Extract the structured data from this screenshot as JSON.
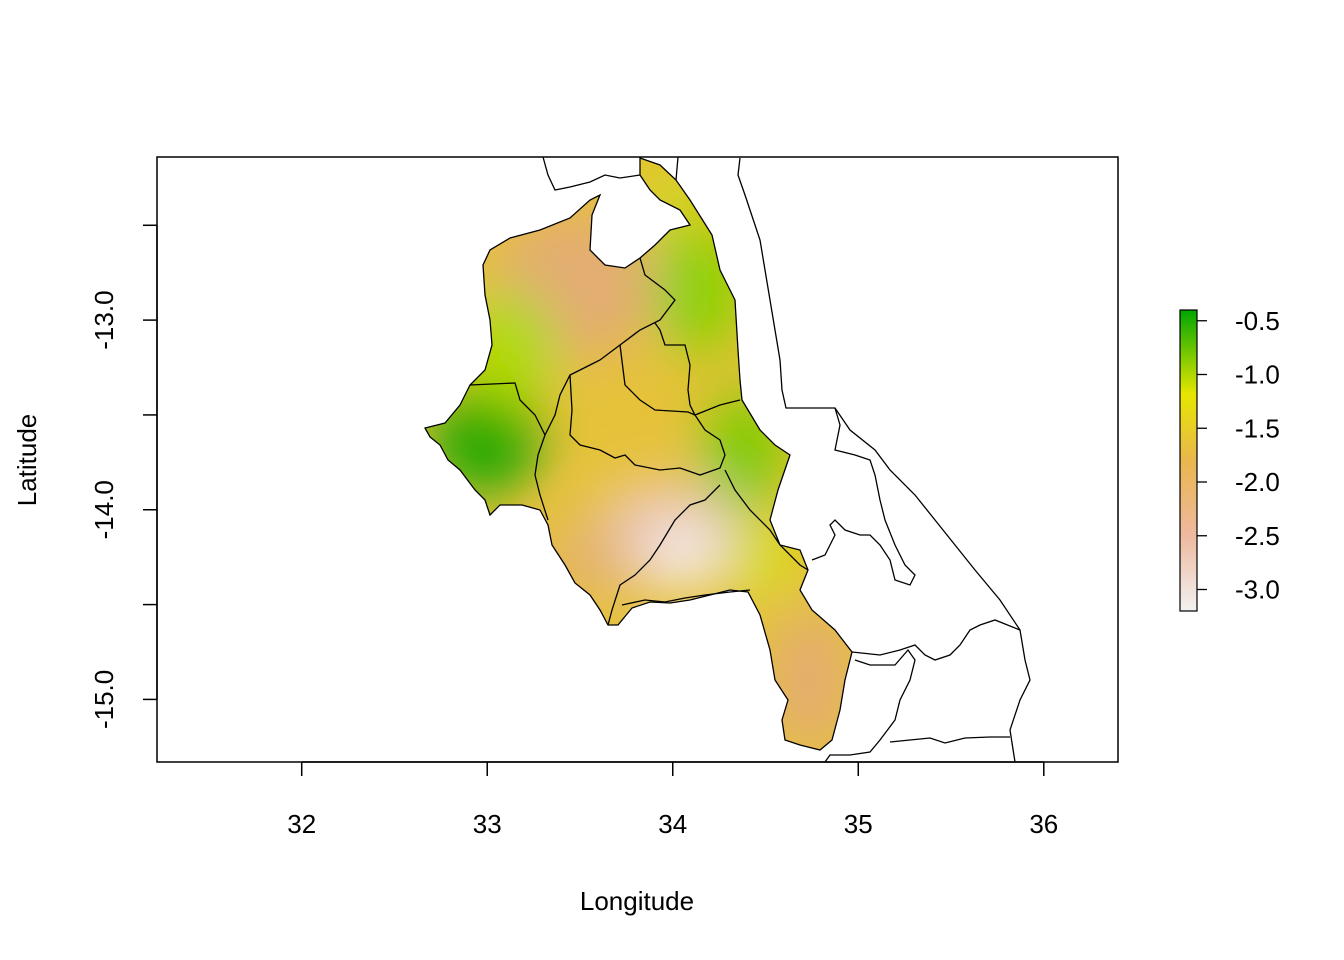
{
  "plot": {
    "xlabel": "Longitude",
    "ylabel": "Latitude",
    "xlim": [
      31.22,
      36.4
    ],
    "ylim": [
      -15.33,
      -12.14
    ],
    "x_ticks": [
      32,
      33,
      34,
      35,
      36
    ],
    "x_tick_labels": [
      "32",
      "33",
      "34",
      "35",
      "36"
    ],
    "y_ticks": [
      -12.5,
      -13.0,
      -13.5,
      -14.0,
      -14.5,
      -15.0
    ],
    "y_tick_labels": [
      "",
      "-13.0",
      "",
      "-14.0",
      "",
      "-15.0"
    ]
  },
  "legend": {
    "values": [
      -0.5,
      -1.0,
      -1.5,
      -2.0,
      -2.5,
      -3.0
    ],
    "labels": [
      "-0.5",
      "-1.0",
      "-1.5",
      "-2.0",
      "-2.5",
      "-3.0"
    ],
    "range": [
      -3.2,
      -0.4
    ],
    "colors": [
      "#00A600",
      "#E6E600",
      "#EAB64E",
      "#EEB99F",
      "#F2F2F2"
    ]
  },
  "chart_data": {
    "type": "heatmap",
    "title": "",
    "xlabel": "Longitude",
    "ylabel": "Latitude",
    "xlim": [
      31.22,
      36.4
    ],
    "ylim": [
      -15.33,
      -12.14
    ],
    "value_range": [
      -3.2,
      -0.4
    ],
    "colormap": "terrain",
    "legend_position": "right"
  }
}
